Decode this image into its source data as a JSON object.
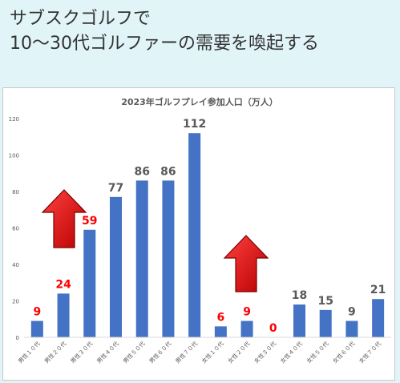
{
  "headline": {
    "line1": "サブスクゴルフで",
    "line2": "10〜30代ゴルファーの需要を喚起する"
  },
  "colors": {
    "background": "#e1f4f7",
    "bar": "#4472c4",
    "label_default": "#595959",
    "label_highlight": "#ff0000",
    "arrow": "#ff0000"
  },
  "chart_data": {
    "type": "bar",
    "title": "2023年ゴルフプレイ参加人口（万人）",
    "categories": [
      "男性１０代",
      "男性２０代",
      "男性３０代",
      "男性４０代",
      "男性５０代",
      "男性６０代",
      "男性７０代",
      "女性１０代",
      "女性２０代",
      "女性３０代",
      "女性４０代",
      "女性５０代",
      "女性６０代",
      "女性７０代"
    ],
    "values": [
      9,
      24,
      59,
      77,
      86,
      86,
      112,
      6,
      9,
      0,
      18,
      15,
      9,
      21
    ],
    "value_labels": [
      "9",
      "24",
      "59",
      "77",
      "86",
      "86",
      "112",
      "6",
      "9",
      "0",
      "18",
      "15",
      "9",
      "21"
    ],
    "highlighted": [
      true,
      true,
      true,
      false,
      false,
      false,
      false,
      true,
      true,
      true,
      false,
      false,
      false,
      false
    ],
    "ylim": [
      0,
      120
    ],
    "yticks": [
      "0",
      "20",
      "40",
      "60",
      "80",
      "100",
      "120"
    ],
    "grid": false,
    "legend": "none",
    "annotations": [
      {
        "type": "up-arrow-icon",
        "over": "男性２０代"
      },
      {
        "type": "up-arrow-icon",
        "over": "女性２０代"
      }
    ]
  }
}
